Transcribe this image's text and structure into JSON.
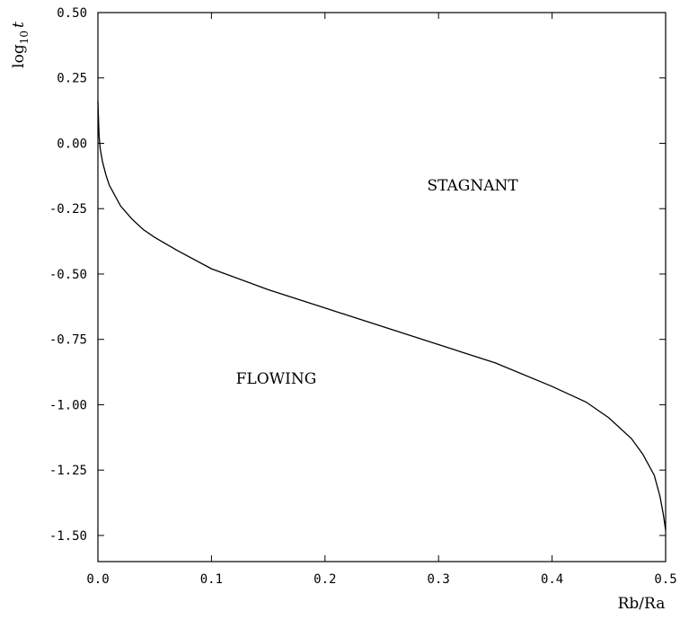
{
  "chart_data": {
    "type": "line",
    "title": "",
    "xlabel": "Rb/Ra",
    "ylabel": "log₁₀ t",
    "ylabel_parts": {
      "base": "log",
      "sub": "10",
      "var": "t"
    },
    "xlim": [
      0.0,
      0.5
    ],
    "ylim": [
      -1.6,
      0.5
    ],
    "xticks": [
      0.0,
      0.1,
      0.2,
      0.3,
      0.4,
      0.5
    ],
    "xtick_labels": [
      "0.0",
      "0.1",
      "0.2",
      "0.3",
      "0.4",
      "0.5"
    ],
    "yticks": [
      0.5,
      0.25,
      0.0,
      -0.25,
      -0.5,
      -0.75,
      -1.0,
      -1.25,
      -1.5
    ],
    "ytick_labels": [
      "0.50",
      "0.25",
      "0.00",
      "-0.25",
      "-0.50",
      "-0.75",
      "-1.00",
      "-1.25",
      "-1.50"
    ],
    "grid": false,
    "series": [
      {
        "color": "#000000",
        "x": [
          0.0,
          0.001,
          0.002,
          0.004,
          0.007,
          0.01,
          0.015,
          0.02,
          0.03,
          0.04,
          0.05,
          0.07,
          0.1,
          0.15,
          0.2,
          0.25,
          0.3,
          0.35,
          0.4,
          0.43,
          0.45,
          0.47,
          0.48,
          0.49,
          0.495,
          0.498,
          0.5
        ],
        "y": [
          0.16,
          0.03,
          -0.02,
          -0.07,
          -0.12,
          -0.16,
          -0.2,
          -0.24,
          -0.29,
          -0.33,
          -0.36,
          -0.41,
          -0.48,
          -0.56,
          -0.63,
          -0.7,
          -0.77,
          -0.84,
          -0.93,
          -0.99,
          -1.05,
          -1.13,
          -1.19,
          -1.27,
          -1.35,
          -1.42,
          -1.48
        ]
      }
    ],
    "annotations": [
      {
        "text": "STAGNANT",
        "x": 0.33,
        "y": -0.18
      },
      {
        "text": "FLOWING",
        "x": 0.157,
        "y": -0.92
      }
    ]
  }
}
